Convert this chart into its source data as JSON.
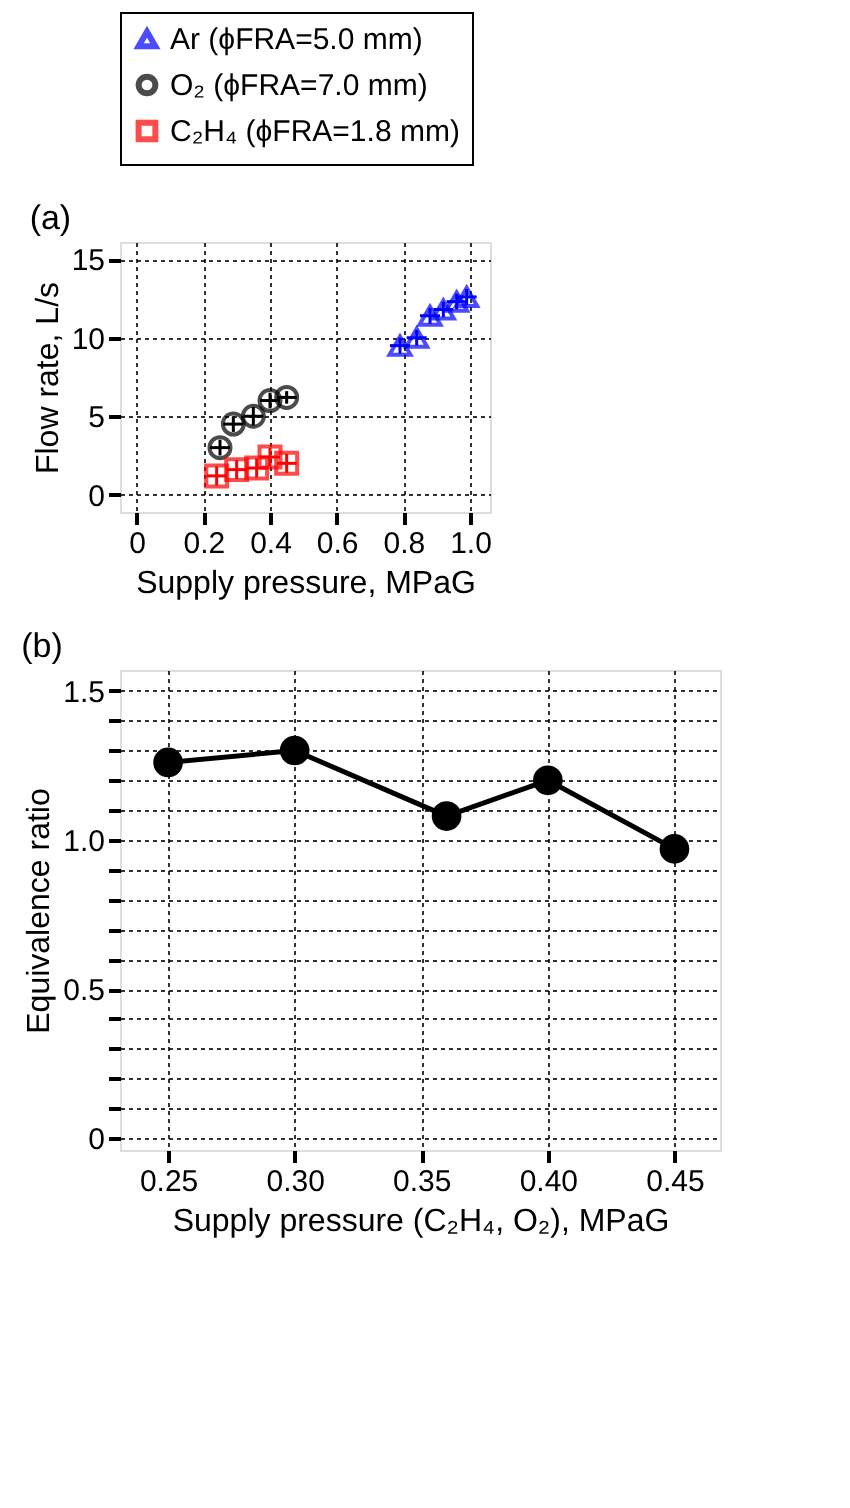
{
  "chart_data": [
    {
      "type": "scatter",
      "annotations": [
        "(a)"
      ],
      "xlabel": "Supply pressure, MPaG",
      "ylabel": "Flow rate, L/s",
      "xlim": [
        -0.05,
        1.06
      ],
      "ylim": [
        -1.1,
        16.1
      ],
      "xticks": [
        0,
        0.2,
        0.4,
        0.6,
        0.8,
        {
          "value": 1.0,
          "label": "1.0"
        }
      ],
      "yticks": [
        0,
        5,
        10,
        15
      ],
      "grid": true,
      "legend": "top",
      "series": [
        {
          "name": "Ar (ϕFRA=5.0 mm)",
          "color": "#0000ff",
          "marker": "triangle",
          "x": [
            0.79,
            0.84,
            0.88,
            0.92,
            0.96,
            0.99
          ],
          "values": [
            9.5,
            10.0,
            11.4,
            11.8,
            12.3,
            12.6
          ],
          "errors": [
            0.5,
            0.5,
            0.5,
            0.5,
            0.5,
            0.5
          ],
          "xerrors": [
            0.03,
            0.03,
            0.03,
            0.03,
            0.03,
            0.03
          ]
        },
        {
          "name": "O₂ (ϕFRA=7.0 mm)",
          "color": "#000000",
          "marker": "circle",
          "x": [
            0.25,
            0.29,
            0.35,
            0.4,
            0.45
          ],
          "values": [
            3.0,
            4.5,
            5.0,
            6.0,
            6.2
          ],
          "errors": [
            0.5,
            0.5,
            0.6,
            0.5,
            0.4
          ],
          "xerrors": [
            0.03,
            0.03,
            0.03,
            0.03,
            0.03
          ]
        },
        {
          "name": "C₂H₄ (ϕFRA=1.8 mm)",
          "color": "#ff0000",
          "marker": "square",
          "x": [
            0.24,
            0.3,
            0.36,
            0.4,
            0.45
          ],
          "values": [
            1.2,
            1.6,
            1.7,
            2.4,
            2.0
          ],
          "errors": [
            0.6,
            0.6,
            0.6,
            0.6,
            0.6
          ],
          "xerrors": [
            0.03,
            0.03,
            0.03,
            0.03,
            0.03
          ]
        }
      ]
    },
    {
      "type": "line",
      "annotations": [
        "(b)"
      ],
      "xlabel": "Supply pressure (C₂H₄, O₂), MPaG",
      "ylabel": "Equivalence ratio",
      "xlim": [
        0.231,
        0.468
      ],
      "ylim": [
        -0.04,
        1.57
      ],
      "xticks": [
        0.25,
        {
          "value": 0.3,
          "label": "0.30"
        },
        0.35,
        {
          "value": 0.4,
          "label": "0.40"
        },
        0.45
      ],
      "yticks": [
        0,
        {
          "value": 0.1,
          "label": null
        },
        {
          "value": 0.2,
          "label": null
        },
        {
          "value": 0.3,
          "label": null
        },
        {
          "value": 0.4,
          "label": null
        },
        0.5,
        {
          "value": 0.6,
          "label": null
        },
        {
          "value": 0.7,
          "label": null
        },
        {
          "value": 0.8,
          "label": null
        },
        {
          "value": 0.9,
          "label": null
        },
        {
          "value": 1.0,
          "label": "1.0"
        },
        {
          "value": 1.1,
          "label": null
        },
        {
          "value": 1.2,
          "label": null
        },
        {
          "value": 1.3,
          "label": null
        },
        {
          "value": 1.4,
          "label": null
        },
        1.5
      ],
      "grid": true,
      "marker": "circle",
      "line_style": "solid",
      "series": [
        {
          "color": "#000000",
          "x": [
            0.25,
            0.3,
            0.36,
            0.4,
            0.45
          ],
          "values": [
            1.26,
            1.3,
            1.08,
            1.2,
            0.97
          ]
        }
      ]
    }
  ]
}
